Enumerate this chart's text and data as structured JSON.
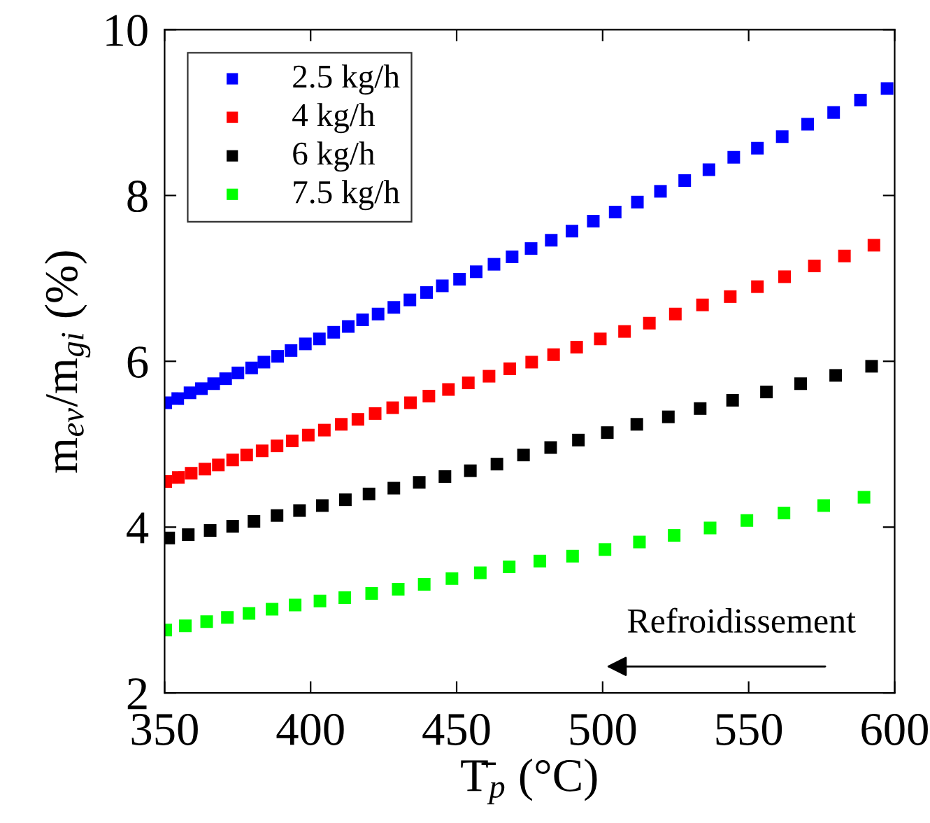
{
  "chart_data": {
    "type": "scatter",
    "xlabel": "T̄$_{p}$ (°C)",
    "ylabel": "m$_{ev}$/m$_{gi}$ (%)",
    "xlim": [
      350,
      600
    ],
    "xticks": [
      350,
      400,
      450,
      500,
      550,
      600
    ],
    "ylim": [
      2,
      10
    ],
    "yticks": [
      2,
      4,
      6,
      8,
      10
    ],
    "grid": false,
    "legend": "top left",
    "marker": "square",
    "annotations": [
      "Refroidissement"
    ],
    "series": [
      {
        "name": "2.5 kg/h",
        "color": "#0000ff",
        "x": [
          350.4,
          354.5,
          358.7,
          362.6,
          366.8,
          370.9,
          375.1,
          379.8,
          384.0,
          388.7,
          393.3,
          398.2,
          403.0,
          407.9,
          412.9,
          417.8,
          423.1,
          428.5,
          434.0,
          439.7,
          445.1,
          451.0,
          456.7,
          462.8,
          469.0,
          475.5,
          482.4,
          489.5,
          496.8,
          504.3,
          511.9,
          519.8,
          528.1,
          536.4,
          544.9,
          553.0,
          561.5,
          570.2,
          579.1,
          588.3,
          597.4
        ],
        "values": [
          5.5,
          5.55,
          5.62,
          5.67,
          5.73,
          5.79,
          5.86,
          5.92,
          5.99,
          6.06,
          6.13,
          6.21,
          6.27,
          6.35,
          6.42,
          6.5,
          6.57,
          6.65,
          6.74,
          6.83,
          6.91,
          6.99,
          7.08,
          7.17,
          7.26,
          7.36,
          7.46,
          7.57,
          7.69,
          7.8,
          7.92,
          8.05,
          8.18,
          8.31,
          8.46,
          8.57,
          8.71,
          8.86,
          9.0,
          9.15,
          9.29
        ]
      },
      {
        "name": "4 kg/h",
        "color": "#ff0000",
        "x": [
          350.4,
          354.7,
          359.1,
          363.8,
          368.4,
          373.3,
          378.1,
          383.4,
          388.5,
          393.7,
          399.2,
          404.7,
          410.5,
          416.2,
          422.1,
          428.1,
          434.2,
          440.5,
          447.2,
          454.0,
          461.1,
          468.2,
          475.7,
          483.2,
          491.1,
          499.2,
          507.5,
          516.0,
          524.9,
          534.2,
          543.7,
          553.0,
          562.3,
          572.5,
          582.8,
          592.9
        ],
        "values": [
          4.55,
          4.6,
          4.65,
          4.7,
          4.75,
          4.81,
          4.87,
          4.92,
          4.98,
          5.04,
          5.11,
          5.17,
          5.24,
          5.3,
          5.37,
          5.44,
          5.5,
          5.58,
          5.66,
          5.74,
          5.82,
          5.91,
          5.99,
          6.08,
          6.17,
          6.27,
          6.36,
          6.46,
          6.57,
          6.68,
          6.78,
          6.9,
          7.02,
          7.15,
          7.27,
          7.4
        ]
      },
      {
        "name": "6 kg/h",
        "color": "#000000",
        "x": [
          351.4,
          358.1,
          365.6,
          373.3,
          380.6,
          388.5,
          396.2,
          404.0,
          411.9,
          420.0,
          428.5,
          437.2,
          446.0,
          454.7,
          463.8,
          472.9,
          482.2,
          491.7,
          501.6,
          511.7,
          522.5,
          533.4,
          544.5,
          556.1,
          567.8,
          579.8,
          592.1
        ],
        "values": [
          3.87,
          3.91,
          3.96,
          4.01,
          4.07,
          4.14,
          4.2,
          4.26,
          4.33,
          4.4,
          4.47,
          4.54,
          4.61,
          4.68,
          4.76,
          4.87,
          4.96,
          5.05,
          5.14,
          5.24,
          5.33,
          5.43,
          5.53,
          5.63,
          5.73,
          5.83,
          5.94
        ]
      },
      {
        "name": "7.5 kg/h",
        "color": "#00ff00",
        "x": [
          350.4,
          357.1,
          364.4,
          371.5,
          378.9,
          386.8,
          394.7,
          403.2,
          411.7,
          420.9,
          430.0,
          438.9,
          448.4,
          458.1,
          468.0,
          478.5,
          489.7,
          500.8,
          512.6,
          524.5,
          536.8,
          549.4,
          562.1,
          575.7,
          589.5
        ],
        "values": [
          2.76,
          2.81,
          2.86,
          2.91,
          2.96,
          3.01,
          3.06,
          3.11,
          3.15,
          3.2,
          3.25,
          3.31,
          3.38,
          3.45,
          3.52,
          3.59,
          3.65,
          3.73,
          3.82,
          3.9,
          3.99,
          4.08,
          4.17,
          4.26,
          4.36
        ]
      }
    ]
  }
}
